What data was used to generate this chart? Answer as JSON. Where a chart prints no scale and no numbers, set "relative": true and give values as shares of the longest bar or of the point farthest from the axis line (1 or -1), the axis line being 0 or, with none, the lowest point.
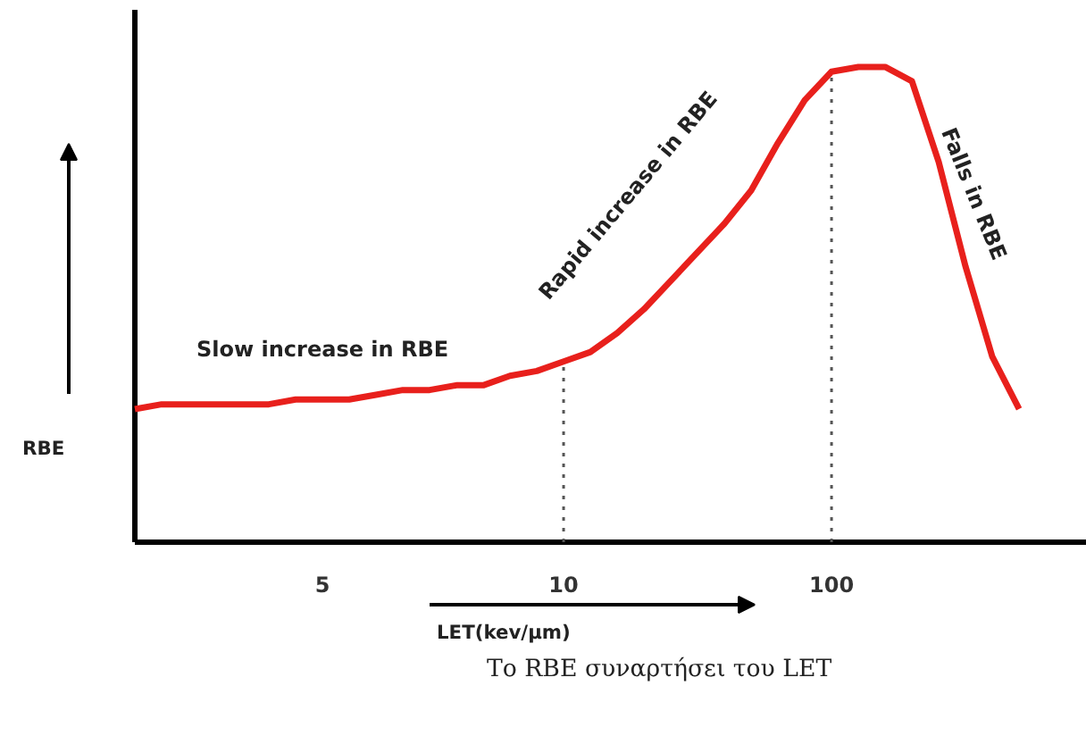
{
  "chart_data": {
    "type": "line",
    "relative": true,
    "xlabel": "LET(kev/μm)",
    "ylabel": "RBE",
    "categories": [
      null,
      null,
      null,
      null,
      null,
      null,
      null,
      "5",
      null,
      null,
      null,
      null,
      null,
      null,
      null,
      null,
      "10",
      null,
      null,
      null,
      null,
      null,
      null,
      null,
      null,
      null,
      "100",
      null,
      null,
      null,
      null,
      null,
      null,
      null
    ],
    "series": [
      {
        "color": "#e8201c",
        "values": [
          0.28,
          0.29,
          0.29,
          0.29,
          0.29,
          0.29,
          0.3,
          0.3,
          0.3,
          0.31,
          0.32,
          0.32,
          0.33,
          0.33,
          0.35,
          0.36,
          0.38,
          0.4,
          0.44,
          0.49,
          0.55,
          0.61,
          0.67,
          0.74,
          0.84,
          0.93,
          0.99,
          1.0,
          1.0,
          0.97,
          0.8,
          0.58,
          0.39,
          0.28
        ]
      }
    ],
    "ref_lines": [
      {
        "axis": "x",
        "value": "10",
        "line_style": "dotted",
        "color": "#555555"
      },
      {
        "axis": "x",
        "value": "100",
        "line_style": "dotted",
        "color": "#555555"
      }
    ],
    "annotations": [
      "Slow increase in RBE",
      "Rapid increase in RBE",
      "Falls in RBE",
      "Το RBE συναρτήσει του LET"
    ],
    "grid": false,
    "marker": "none",
    "line_style": "solid"
  }
}
